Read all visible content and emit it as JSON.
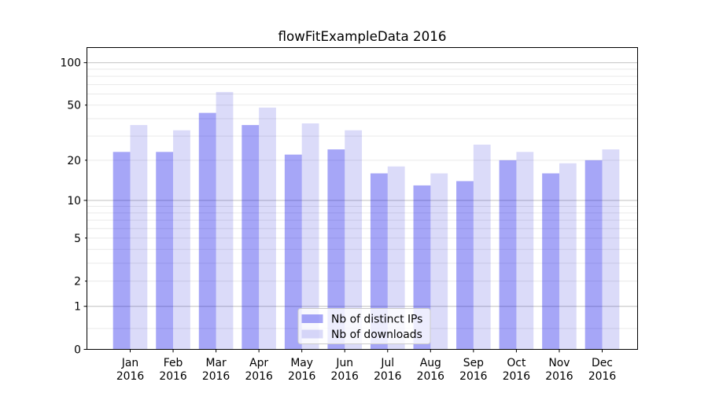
{
  "chart_data": {
    "type": "bar",
    "title": "flowFitExampleData 2016",
    "categories": [
      "Jan 2016",
      "Feb 2016",
      "Mar 2016",
      "Apr 2016",
      "May 2016",
      "Jun 2016",
      "Jul 2016",
      "Aug 2016",
      "Sep 2016",
      "Oct 2016",
      "Nov 2016",
      "Dec 2016"
    ],
    "series": [
      {
        "name": "Nb of distinct IPs",
        "values": [
          23,
          23,
          44,
          36,
          22,
          24,
          16,
          13,
          14,
          20,
          16,
          20
        ]
      },
      {
        "name": "Nb of downloads",
        "values": [
          36,
          33,
          62,
          48,
          37,
          33,
          18,
          16,
          26,
          23,
          19,
          24
        ]
      }
    ],
    "yscale": "log1p",
    "yticks": [
      0,
      1,
      2,
      5,
      10,
      20,
      50,
      100
    ],
    "ytick_labels": [
      "0",
      "1",
      "2",
      "5",
      "10",
      "20",
      "50",
      "100"
    ],
    "ylim": [
      0,
      128
    ],
    "grid": "on",
    "legend_position": "lower center"
  },
  "colors": {
    "ips_fill": "rgba(0,0,232,0.35)",
    "downloads_fill": "rgba(0,0,212,0.14)",
    "grid_minor": "#e9e9e9",
    "grid_major": "#c0c0c0",
    "spine": "#000000",
    "legend_bg": "rgba(255,255,255,0.8)",
    "legend_border": "#cccccc",
    "text": "#000000"
  }
}
